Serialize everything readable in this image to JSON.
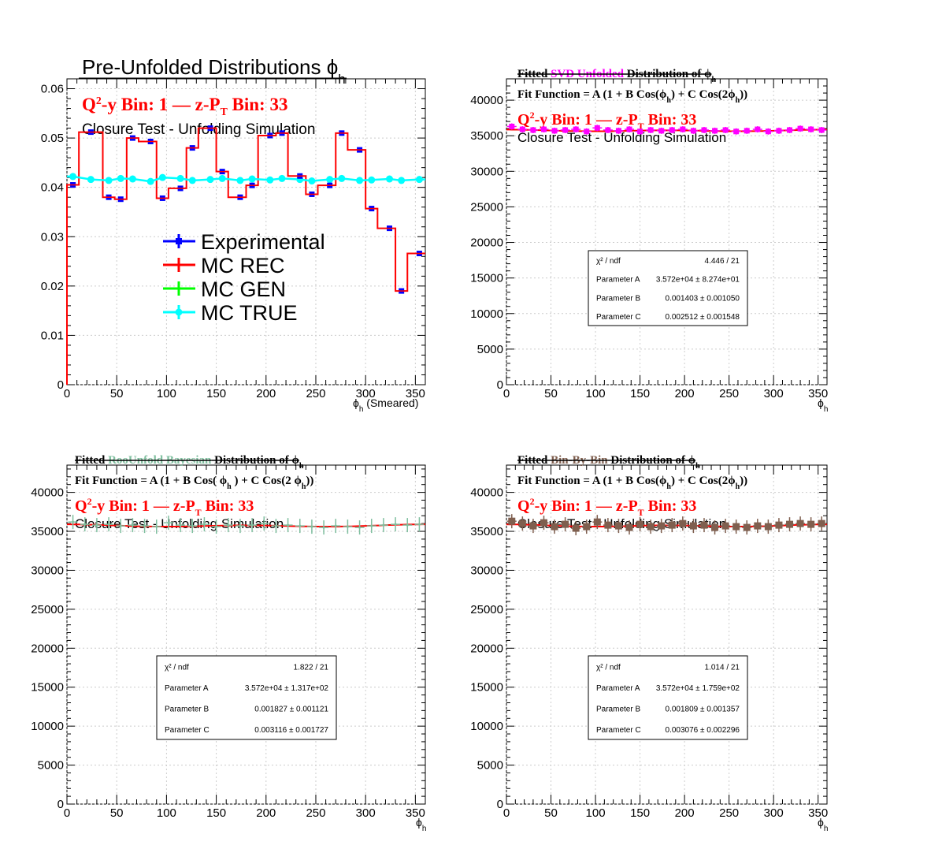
{
  "colors": {
    "experimental": "#0000ff",
    "mc_rec": "#ff0000",
    "mc_gen": "#00ff00",
    "mc_true": "#00ffff",
    "svd": "#ff00ff",
    "bayes": "#7fbf9f",
    "binbybin": "#7f5f4f",
    "fit": "#ff0000",
    "red_text": "#ff0000"
  },
  "chart_data": [
    {
      "type": "line",
      "title": "Pre-Unfolded Distributions ϕ",
      "title_sub": "h",
      "bin_label": "-y Bin: 1  —  z-P",
      "bin_label_q": "Q",
      "bin_label_sup": "2",
      "bin_label_sub": "T",
      "bin_label_tail": " Bin: 33",
      "note": "Closure Test - Unfolding Simulation",
      "xlabel": "ϕ",
      "xlabel_sub": "h",
      "xlabel_tail": " (Smeared)",
      "xlim": [
        0,
        360
      ],
      "ylim": [
        0,
        0.062
      ],
      "xticks": [
        "0",
        "50",
        "100",
        "150",
        "200",
        "250",
        "300",
        "350"
      ],
      "yticks": [
        "0",
        "0.01",
        "0.02",
        "0.03",
        "0.04",
        "0.05",
        "0.06"
      ],
      "ytick_values": [
        0,
        0.01,
        0.02,
        0.03,
        0.04,
        0.05,
        0.06
      ],
      "legend": [
        "Experimental",
        "MC REC",
        "MC GEN",
        "MC TRUE"
      ],
      "x": [
        6,
        24,
        42,
        54,
        66,
        84,
        96,
        114,
        126,
        144,
        156,
        174,
        186,
        204,
        216,
        234,
        246,
        264,
        276,
        294,
        306,
        324,
        336,
        354
      ],
      "series": [
        {
          "name": "Experimental",
          "values": [
            0.0405,
            0.0512,
            0.038,
            0.0376,
            0.05,
            0.0493,
            0.0378,
            0.0398,
            0.048,
            0.052,
            0.0432,
            0.038,
            0.0404,
            0.0505,
            0.051,
            0.0423,
            0.0386,
            0.0404,
            0.051,
            0.0476,
            0.0357,
            0.0317,
            0.019,
            0.0266
          ]
        },
        {
          "name": "MC REC",
          "values": [
            0.0405,
            0.0512,
            0.038,
            0.0376,
            0.05,
            0.0493,
            0.0378,
            0.0398,
            0.048,
            0.052,
            0.0432,
            0.038,
            0.0404,
            0.0505,
            0.051,
            0.0423,
            0.0386,
            0.0404,
            0.051,
            0.0476,
            0.0357,
            0.0317,
            0.019,
            0.0266
          ]
        },
        {
          "name": "MC TRUE",
          "values": [
            0.0422,
            0.0416,
            0.0414,
            0.0418,
            0.0417,
            0.0412,
            0.042,
            0.0418,
            0.0414,
            0.0416,
            0.0418,
            0.0414,
            0.0417,
            0.0415,
            0.0418,
            0.0416,
            0.0413,
            0.0416,
            0.0418,
            0.0414,
            0.0415,
            0.0417,
            0.0414,
            0.0416
          ]
        }
      ]
    },
    {
      "type": "scatter",
      "title_parts": [
        "Fitted ",
        "SVD Unfolded",
        " Distribution of  ϕ"
      ],
      "title_sub": "h",
      "fit_function": "Fit Function = A (1 + B Cos(ϕ",
      "fit_function_mid": ") + C Cos(2ϕ",
      "fit_function_tail": "))",
      "fit_sub": "h",
      "bin_label_q": "Q",
      "bin_label_sup": "2",
      "bin_label": "-y Bin: 1  —  z-P",
      "bin_label_sub": "T",
      "bin_label_tail": " Bin: 33",
      "note": "Closure Test - Unfolding Simulation",
      "xlabel": "ϕ",
      "xlabel_sub": "h",
      "xlim": [
        0,
        360
      ],
      "ylim": [
        0,
        43000
      ],
      "xticks": [
        "0",
        "50",
        "100",
        "150",
        "200",
        "250",
        "300",
        "350"
      ],
      "yticks": [
        "0",
        "5000",
        "10000",
        "15000",
        "20000",
        "25000",
        "30000",
        "35000",
        "40000"
      ],
      "ytick_values": [
        0,
        5000,
        10000,
        15000,
        20000,
        25000,
        30000,
        35000,
        40000
      ],
      "stats": [
        {
          "label": "χ² / ndf",
          "value": "4.446 / 21"
        },
        {
          "label": "Parameter A",
          "value": "3.572e+04 ± 8.274e+01"
        },
        {
          "label": "Parameter B",
          "value": "0.001403 ± 0.001050"
        },
        {
          "label": "Parameter C",
          "value": "0.002512 ± 0.001548"
        }
      ],
      "x": [
        6,
        18,
        30,
        42,
        54,
        66,
        78,
        90,
        102,
        114,
        126,
        138,
        150,
        162,
        174,
        186,
        198,
        210,
        222,
        234,
        246,
        258,
        270,
        282,
        294,
        306,
        318,
        330,
        342,
        354
      ],
      "series": [
        {
          "name": "SVD Unfolded",
          "values": [
            36300,
            35900,
            35800,
            35900,
            35700,
            35800,
            35900,
            35600,
            36100,
            35800,
            35700,
            35900,
            35600,
            35800,
            35700,
            35800,
            35900,
            35700,
            35800,
            35700,
            35800,
            35600,
            35700,
            35900,
            35600,
            35700,
            35800,
            36000,
            35900,
            35800
          ]
        }
      ],
      "fit": {
        "A": 35720,
        "B": 0.001403,
        "C": 0.002512
      }
    },
    {
      "type": "scatter",
      "title_parts": [
        "Fitted  ",
        "RooUnfold Bayesian",
        "  Distribution of    ϕ"
      ],
      "title_sub": "h",
      "fit_function": "Fit Function = A (1 + B Cos(   ϕ",
      "fit_function_mid": " ) + C Cos(2 ϕ",
      "fit_function_tail": "))",
      "fit_sub": "h",
      "bin_label_q": "Q",
      "bin_label_sup": "2",
      "bin_label": "-y Bin: 1  —  z-P",
      "bin_label_sub": "T",
      "bin_label_tail": " Bin: 33",
      "note": "Closure Test - Unfolding Simulation",
      "xlabel": "ϕ",
      "xlabel_sub": "h",
      "xlim": [
        0,
        360
      ],
      "ylim": [
        0,
        43500
      ],
      "xticks": [
        "0",
        "50",
        "100",
        "150",
        "200",
        "250",
        "300",
        "350"
      ],
      "yticks": [
        "0",
        "5000",
        "10000",
        "15000",
        "20000",
        "25000",
        "30000",
        "35000",
        "40000"
      ],
      "ytick_values": [
        0,
        5000,
        10000,
        15000,
        20000,
        25000,
        30000,
        35000,
        40000
      ],
      "stats": [
        {
          "label": "χ² / ndf",
          "value": "1.822 / 21"
        },
        {
          "label": "Parameter A",
          "value": "3.572e+04 ± 1.317e+02"
        },
        {
          "label": "Parameter B",
          "value": "0.001827 ± 0.001121"
        },
        {
          "label": "Parameter C",
          "value": "0.003116 ± 0.001727"
        }
      ],
      "x": [
        6,
        18,
        30,
        42,
        54,
        66,
        78,
        90,
        102,
        114,
        126,
        138,
        150,
        162,
        174,
        186,
        198,
        210,
        222,
        234,
        246,
        258,
        270,
        282,
        294,
        306,
        318,
        330,
        342,
        354
      ],
      "series": [
        {
          "name": "RooUnfold Bayesian",
          "values": [
            36200,
            35900,
            35800,
            35900,
            35700,
            35800,
            35700,
            35600,
            36100,
            35800,
            35700,
            35900,
            35600,
            35800,
            35700,
            35800,
            36000,
            35700,
            35800,
            35700,
            35600,
            35500,
            35700,
            35600,
            35500,
            35700,
            35800,
            35900,
            35800,
            35900
          ]
        }
      ],
      "fit": {
        "A": 35720,
        "B": 0.001827,
        "C": 0.003116
      }
    },
    {
      "type": "scatter",
      "title_parts": [
        "Fitted  ",
        "Bin-By-Bin",
        " Distribution of  ϕ"
      ],
      "title_sub": "h",
      "fit_function": "Fit Function = A (1 + B Cos(ϕ",
      "fit_function_mid": ") + C Cos(2ϕ",
      "fit_function_tail": "))",
      "fit_sub": "h",
      "bin_label_q": "Q",
      "bin_label_sup": "2",
      "bin_label": "-y Bin: 1  —  z-P",
      "bin_label_sub": "T",
      "bin_label_tail": " Bin: 33",
      "note": "Closure Test - Unfolding Simulation",
      "xlabel": "ϕ",
      "xlabel_sub": "h",
      "xlim": [
        0,
        360
      ],
      "ylim": [
        0,
        43500
      ],
      "xticks": [
        "0",
        "50",
        "100",
        "150",
        "200",
        "250",
        "300",
        "350"
      ],
      "yticks": [
        "0",
        "5000",
        "10000",
        "15000",
        "20000",
        "25000",
        "30000",
        "35000",
        "40000"
      ],
      "ytick_values": [
        0,
        5000,
        10000,
        15000,
        20000,
        25000,
        30000,
        35000,
        40000
      ],
      "stats": [
        {
          "label": "χ² / ndf",
          "value": "1.014 / 21"
        },
        {
          "label": "Parameter A",
          "value": "3.572e+04 ± 1.759e+02"
        },
        {
          "label": "Parameter B",
          "value": "0.001809 ± 0.001357"
        },
        {
          "label": "Parameter C",
          "value": "0.003076 ± 0.002296"
        }
      ],
      "x": [
        6,
        18,
        30,
        42,
        54,
        66,
        78,
        90,
        102,
        114,
        126,
        138,
        150,
        162,
        174,
        186,
        198,
        210,
        222,
        234,
        246,
        258,
        270,
        282,
        294,
        306,
        318,
        330,
        342,
        354
      ],
      "series": [
        {
          "name": "Bin-By-Bin",
          "values": [
            36300,
            36000,
            35700,
            36100,
            35600,
            35900,
            35400,
            35600,
            36200,
            35800,
            35700,
            35500,
            35900,
            35600,
            35700,
            35800,
            36000,
            35700,
            35800,
            35500,
            35700,
            35600,
            35500,
            35700,
            35600,
            35800,
            35900,
            36000,
            35900,
            36000
          ]
        }
      ],
      "fit": {
        "A": 35720,
        "B": 0.001809,
        "C": 0.003076
      }
    }
  ]
}
